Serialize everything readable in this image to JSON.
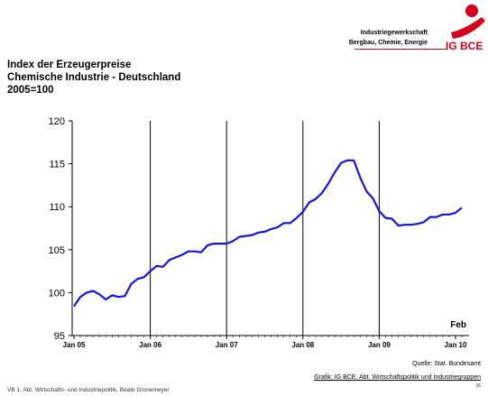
{
  "header": {
    "org_line1": "Industriegewerkschaft",
    "org_line2": "Bergbau, Chemie, Energie",
    "logo_text": "IG BCE",
    "accent": "#d4001a"
  },
  "chart_data": {
    "type": "line",
    "title_lines": [
      "Index der Erzeugerpreise",
      "Chemische Industrie  -  Deutschland",
      "2005=100"
    ],
    "xlabel": "",
    "ylabel": "",
    "ylim": [
      95,
      120
    ],
    "yticks": [
      95,
      100,
      105,
      110,
      115,
      120
    ],
    "xticks": [
      "Jan 05",
      "Jan 06",
      "Jan 07",
      "Jan 08",
      "Jan 09",
      "Jan 10"
    ],
    "end_label": "Feb",
    "grid": "vertical",
    "line_color": "#1414e0",
    "series": [
      {
        "x": [
          "2005-01",
          "2005-02",
          "2005-03",
          "2005-04",
          "2005-05",
          "2005-06",
          "2005-07",
          "2005-08",
          "2005-09",
          "2005-10",
          "2005-11",
          "2005-12",
          "2006-01",
          "2006-02",
          "2006-03",
          "2006-04",
          "2006-05",
          "2006-06",
          "2006-07",
          "2006-08",
          "2006-09",
          "2006-10",
          "2006-11",
          "2006-12",
          "2007-01",
          "2007-02",
          "2007-03",
          "2007-04",
          "2007-05",
          "2007-06",
          "2007-07",
          "2007-08",
          "2007-09",
          "2007-10",
          "2007-11",
          "2007-12",
          "2008-01",
          "2008-02",
          "2008-03",
          "2008-04",
          "2008-05",
          "2008-06",
          "2008-07",
          "2008-08",
          "2008-09",
          "2008-10",
          "2008-11",
          "2008-12",
          "2009-01",
          "2009-02",
          "2009-03",
          "2009-04",
          "2009-05",
          "2009-06",
          "2009-07",
          "2009-08",
          "2009-09",
          "2009-10",
          "2009-11",
          "2009-12",
          "2010-01",
          "2010-02"
        ],
        "values": [
          98.4,
          99.5,
          100.0,
          100.2,
          99.8,
          99.2,
          99.7,
          99.5,
          99.6,
          101.0,
          101.6,
          101.8,
          102.5,
          103.1,
          103.0,
          103.8,
          104.1,
          104.4,
          104.8,
          104.8,
          104.7,
          105.5,
          105.7,
          105.7,
          105.7,
          106.0,
          106.5,
          106.6,
          106.7,
          107.0,
          107.1,
          107.4,
          107.6,
          108.1,
          108.1,
          108.7,
          109.4,
          110.5,
          110.9,
          111.6,
          112.7,
          114.0,
          115.1,
          115.4,
          115.4,
          113.4,
          111.8,
          111.0,
          109.5,
          108.7,
          108.6,
          107.8,
          107.9,
          107.9,
          108.0,
          108.2,
          108.8,
          108.8,
          109.1,
          109.1,
          109.3,
          109.9
        ]
      }
    ]
  },
  "footer": {
    "source": "Quelle: Stat. Bundesamt",
    "credit": "Grafik: IG BCE, Abt. Wirtschaftspolitik und Industriegruppen",
    "left_note": "VB 1,  Abt. Wirtschafts- und Industriepolitik, Beate Gronemeyer",
    "page": "26"
  }
}
